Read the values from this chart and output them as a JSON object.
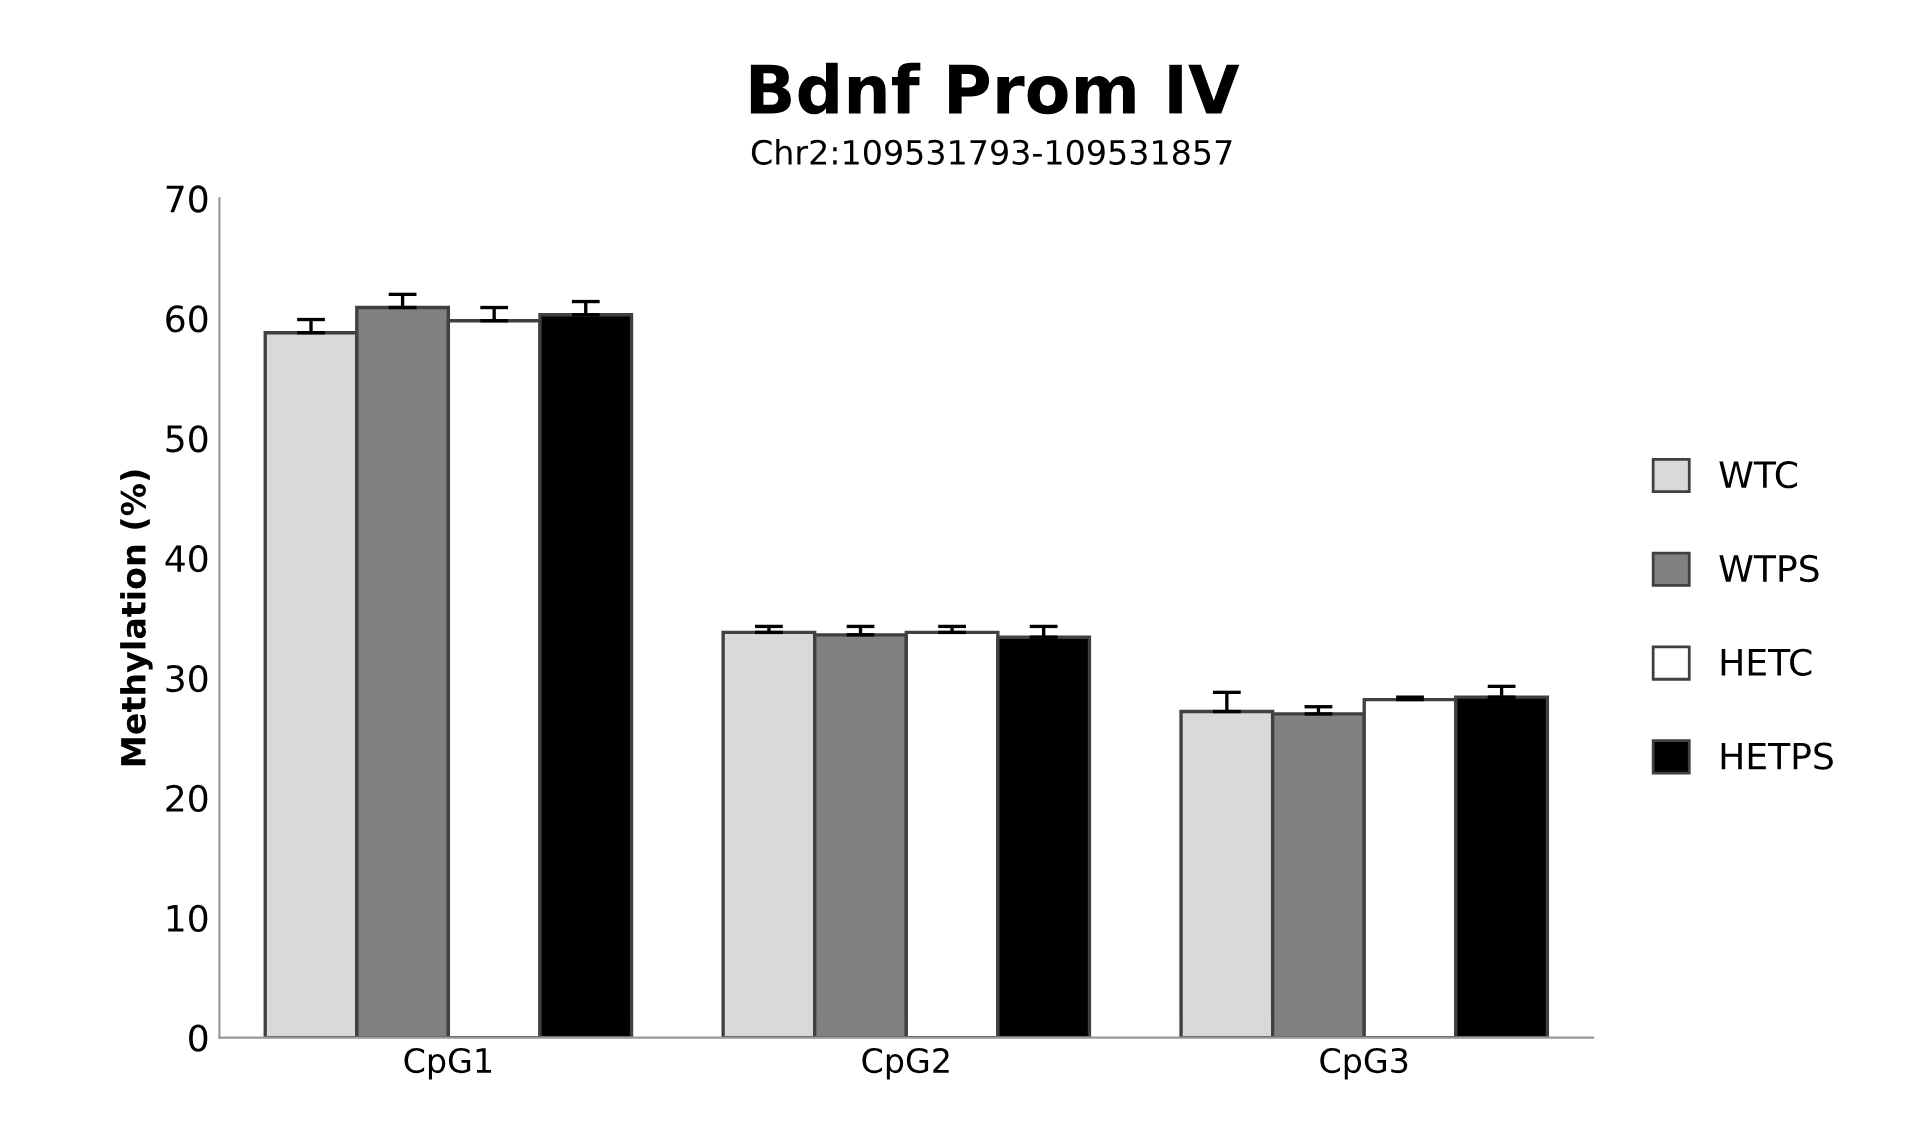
{
  "chart_data": {
    "type": "bar",
    "title": "Bdnf Prom IV",
    "subtitle": "Chr2:109531793-109531857",
    "ylabel": "Methylation (%)",
    "categories": [
      "CpG1",
      "CpG2",
      "CpG3"
    ],
    "series": [
      {
        "name": "WTC",
        "color": "#d9d9d9",
        "values": [
          58.8,
          33.8,
          27.2
        ],
        "errors": [
          [
            58.8,
            59.9
          ],
          [
            33.8,
            34.3
          ],
          [
            27.2,
            28.8
          ]
        ]
      },
      {
        "name": "WTPS",
        "color": "#808080",
        "values": [
          60.9,
          33.6,
          27.0
        ],
        "errors": [
          [
            60.9,
            62.0
          ],
          [
            33.6,
            34.3
          ],
          [
            27.0,
            27.6
          ]
        ]
      },
      {
        "name": "HETC",
        "color": "#ffffff",
        "values": [
          59.8,
          33.8,
          28.2
        ],
        "errors": [
          [
            59.8,
            60.9
          ],
          [
            33.8,
            34.3
          ],
          [
            28.2,
            28.4
          ]
        ]
      },
      {
        "name": "HETPS",
        "color": "#000000",
        "values": [
          60.3,
          33.4,
          28.4
        ],
        "errors": [
          [
            60.3,
            61.4
          ],
          [
            33.4,
            34.3
          ],
          [
            28.4,
            29.3
          ]
        ]
      }
    ],
    "ylim": [
      0,
      70
    ],
    "yticks": [
      0,
      10,
      20,
      30,
      40,
      50,
      60,
      70
    ],
    "grid": false,
    "legend": "right"
  }
}
